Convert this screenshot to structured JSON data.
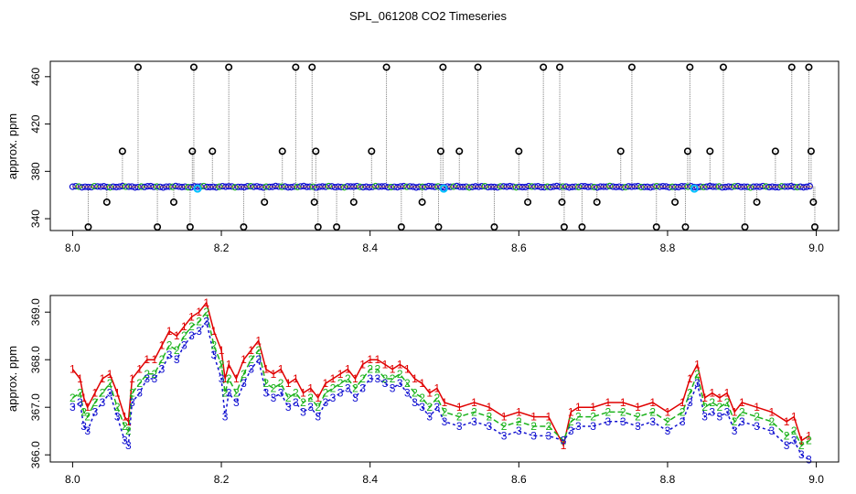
{
  "title": "SPL_061208  CO2 Timeseries",
  "colors": {
    "series1": "#e00000",
    "series2": "#1bb21b",
    "series3": "#1010d0",
    "outlier": "#000000",
    "cyan": "#00c0ff",
    "stem": "#7f7f7f",
    "orange": "#ff8000",
    "axis": "#000000"
  },
  "chart_data": [
    {
      "type": "scatter",
      "ylabel": "approx. ppm",
      "xlim": [
        7.97,
        9.03
      ],
      "ylim": [
        330,
        473
      ],
      "x_ticks": [
        8.0,
        8.2,
        8.4,
        8.6,
        8.8,
        9.0
      ],
      "x_tick_labels": [
        "8.0",
        "8.2",
        "8.4",
        "8.6",
        "8.8",
        "9.0"
      ],
      "y_ticks": [
        340,
        380,
        420,
        460
      ],
      "y_tick_labels": [
        "340",
        "380",
        "420",
        "460"
      ],
      "baseline_ppm": 367,
      "spike_x": [
        8.021,
        8.046,
        8.067,
        8.088,
        8.114,
        8.136,
        8.158,
        8.161,
        8.163,
        8.188,
        8.21,
        8.23,
        8.258,
        8.282,
        8.3,
        8.322,
        8.325,
        8.327,
        8.33,
        8.355,
        8.378,
        8.402,
        8.422,
        8.442,
        8.47,
        8.492,
        8.495,
        8.498,
        8.52,
        8.545,
        8.567,
        8.6,
        8.612,
        8.633,
        8.655,
        8.658,
        8.661,
        8.685,
        8.705,
        8.737,
        8.752,
        8.785,
        8.81,
        8.824,
        8.827,
        8.83,
        8.857,
        8.875,
        8.904,
        8.92,
        8.945,
        8.967,
        8.99,
        8.993,
        8.996,
        8.998
      ],
      "spike_y": [
        333,
        354,
        397,
        468,
        333,
        354,
        333,
        397,
        468,
        397,
        468,
        333,
        354,
        397,
        468,
        468,
        354,
        397,
        333,
        333,
        354,
        397,
        468,
        333,
        354,
        333,
        397,
        468,
        397,
        468,
        333,
        397,
        354,
        468,
        468,
        354,
        333,
        333,
        354,
        397,
        468,
        333,
        354,
        333,
        397,
        468,
        397,
        468,
        333,
        354,
        397,
        468,
        468,
        397,
        354,
        333
      ],
      "cyan_x": [
        8.168,
        8.499,
        8.836
      ]
    },
    {
      "type": "line",
      "ylabel": "approx. ppm",
      "xlim": [
        7.97,
        9.03
      ],
      "ylim": [
        365.85,
        369.35
      ],
      "x_ticks": [
        8.0,
        8.2,
        8.4,
        8.6,
        8.8,
        9.0
      ],
      "x_tick_labels": [
        "8.0",
        "8.2",
        "8.4",
        "8.6",
        "8.8",
        "9.0"
      ],
      "y_ticks": [
        366.0,
        367.0,
        368.0,
        369.0
      ],
      "y_tick_labels": [
        "366.0",
        "367.0",
        "368.0",
        "369.0"
      ],
      "x": [
        8.0,
        8.01,
        8.015,
        8.02,
        8.03,
        8.04,
        8.05,
        8.06,
        8.07,
        8.075,
        8.08,
        8.09,
        8.1,
        8.11,
        8.12,
        8.13,
        8.14,
        8.15,
        8.16,
        8.17,
        8.18,
        8.19,
        8.2,
        8.205,
        8.21,
        8.22,
        8.23,
        8.24,
        8.25,
        8.26,
        8.27,
        8.28,
        8.29,
        8.3,
        8.31,
        8.32,
        8.33,
        8.34,
        8.35,
        8.36,
        8.37,
        8.38,
        8.39,
        8.4,
        8.41,
        8.42,
        8.43,
        8.44,
        8.45,
        8.46,
        8.47,
        8.48,
        8.49,
        8.5,
        8.52,
        8.54,
        8.56,
        8.58,
        8.6,
        8.62,
        8.64,
        8.66,
        8.67,
        8.68,
        8.7,
        8.72,
        8.74,
        8.76,
        8.78,
        8.8,
        8.82,
        8.83,
        8.84,
        8.85,
        8.86,
        8.87,
        8.88,
        8.89,
        8.9,
        8.92,
        8.94,
        8.96,
        8.97,
        8.98,
        8.99
      ],
      "series": [
        {
          "label": "1",
          "values": [
            367.8,
            367.6,
            367.2,
            367.0,
            367.3,
            367.6,
            367.7,
            367.3,
            366.8,
            366.7,
            367.6,
            367.8,
            368.0,
            368.0,
            368.3,
            368.6,
            368.5,
            368.7,
            368.9,
            369.0,
            369.2,
            368.6,
            368.2,
            367.6,
            367.9,
            367.6,
            368.0,
            368.2,
            368.4,
            367.8,
            367.7,
            367.8,
            367.5,
            367.6,
            367.3,
            367.4,
            367.2,
            367.5,
            367.6,
            367.7,
            367.8,
            367.6,
            367.9,
            368.0,
            368.0,
            367.9,
            367.8,
            367.9,
            367.8,
            367.6,
            367.5,
            367.3,
            367.4,
            367.1,
            367.0,
            367.1,
            367.0,
            366.8,
            366.9,
            366.8,
            366.8,
            366.2,
            366.9,
            367.0,
            367.0,
            367.1,
            367.1,
            367.0,
            367.1,
            366.9,
            367.1,
            367.6,
            367.9,
            367.2,
            367.3,
            367.2,
            367.3,
            366.9,
            367.1,
            367.0,
            366.9,
            366.7,
            366.8,
            366.3,
            366.4
          ]
        },
        {
          "label": "2",
          "values": [
            367.2,
            367.3,
            366.9,
            366.8,
            367.1,
            367.3,
            367.5,
            367.0,
            366.6,
            366.5,
            367.3,
            367.5,
            367.7,
            367.7,
            368.0,
            368.3,
            368.2,
            368.5,
            368.7,
            368.8,
            369.0,
            368.3,
            367.9,
            367.3,
            367.6,
            367.3,
            367.7,
            368.0,
            368.2,
            367.5,
            367.4,
            367.5,
            367.2,
            367.3,
            367.1,
            367.2,
            367.0,
            367.3,
            367.4,
            367.5,
            367.6,
            367.4,
            367.6,
            367.8,
            367.8,
            367.6,
            367.6,
            367.7,
            367.5,
            367.3,
            367.2,
            367.0,
            367.2,
            366.9,
            366.8,
            366.9,
            366.8,
            366.6,
            366.7,
            366.6,
            366.6,
            366.3,
            366.7,
            366.8,
            366.8,
            366.9,
            366.9,
            366.8,
            366.9,
            366.7,
            366.9,
            367.3,
            367.7,
            367.0,
            367.1,
            367.0,
            367.1,
            366.7,
            366.9,
            366.8,
            366.7,
            366.4,
            366.5,
            366.2,
            366.3
          ]
        },
        {
          "label": "3",
          "values": [
            367.0,
            367.1,
            366.6,
            366.5,
            366.9,
            367.1,
            367.3,
            366.8,
            366.3,
            366.2,
            367.1,
            367.3,
            367.6,
            367.6,
            367.8,
            368.1,
            368.0,
            368.3,
            368.5,
            368.6,
            368.8,
            368.1,
            367.6,
            366.8,
            367.3,
            367.1,
            367.5,
            367.8,
            368.0,
            367.3,
            367.2,
            367.3,
            367.0,
            367.1,
            366.9,
            367.0,
            366.8,
            367.1,
            367.2,
            367.3,
            367.4,
            367.2,
            367.4,
            367.6,
            367.6,
            367.5,
            367.4,
            367.5,
            367.3,
            367.1,
            367.0,
            366.8,
            367.0,
            366.7,
            366.6,
            366.7,
            366.6,
            366.4,
            366.5,
            366.4,
            366.4,
            366.3,
            366.5,
            366.6,
            366.6,
            366.7,
            366.7,
            366.6,
            366.7,
            366.5,
            366.7,
            367.1,
            367.5,
            366.8,
            366.9,
            366.8,
            366.9,
            366.5,
            366.7,
            366.6,
            366.5,
            366.2,
            366.3,
            366.0,
            365.9
          ]
        }
      ]
    }
  ]
}
